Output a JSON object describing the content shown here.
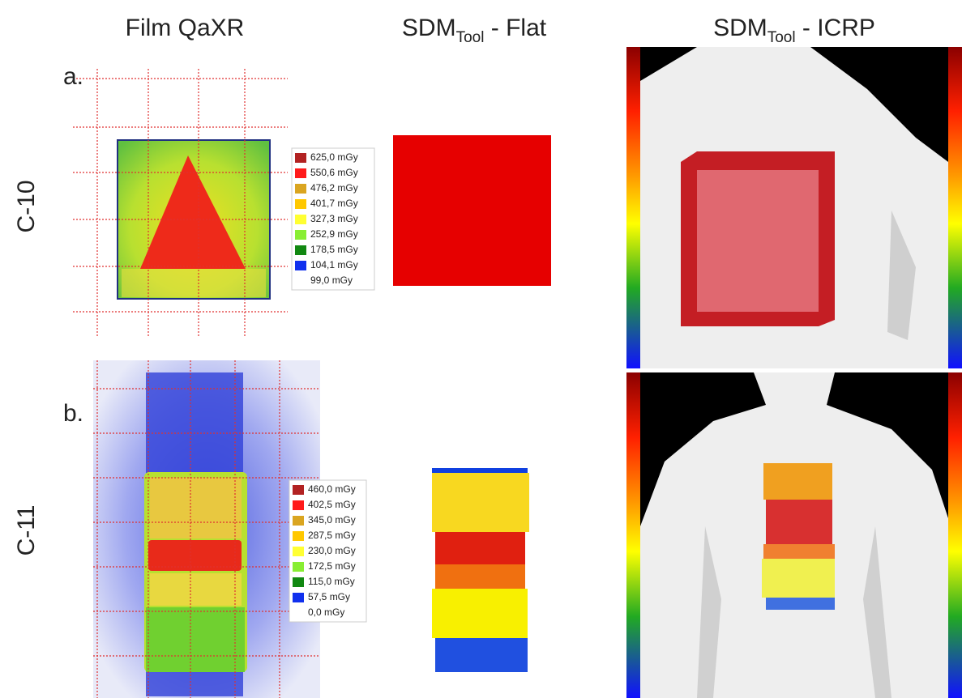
{
  "columns": [
    {
      "text": "Film QaXR"
    },
    {
      "main": "SDM",
      "sub": "Tool",
      "rest": " - Flat"
    },
    {
      "main": "SDM",
      "sub": "Tool",
      "rest": " - ICRP"
    }
  ],
  "rows": [
    {
      "label": "C-10",
      "letter": "a.",
      "legend": [
        {
          "text": "625,0 mGy",
          "color": "#b22222"
        },
        {
          "text": "550,6 mGy",
          "color": "#ff1a1a"
        },
        {
          "text": "476,2 mGy",
          "color": "#daa520"
        },
        {
          "text": "401,7 mGy",
          "color": "#ffc800"
        },
        {
          "text": "327,3 mGy",
          "color": "#ffff33"
        },
        {
          "text": "252,9 mGy",
          "color": "#88ee33"
        },
        {
          "text": "178,5 mGy",
          "color": "#118811"
        },
        {
          "text": "104,1 mGy",
          "color": "#1030ee"
        },
        {
          "text": "99,0 mGy",
          "color": "#ffffff"
        }
      ]
    },
    {
      "label": "C-11",
      "letter": "b.",
      "legend": [
        {
          "text": "460,0 mGy",
          "color": "#b22222"
        },
        {
          "text": "402,5 mGy",
          "color": "#ff1a1a"
        },
        {
          "text": "345,0 mGy",
          "color": "#daa520"
        },
        {
          "text": "287,5 mGy",
          "color": "#ffc800"
        },
        {
          "text": "230,0 mGy",
          "color": "#ffff33"
        },
        {
          "text": "172,5 mGy",
          "color": "#88ee33"
        },
        {
          "text": "115,0 mGy",
          "color": "#118811"
        },
        {
          "text": "57,5 mGy",
          "color": "#1030ee"
        },
        {
          "text": "0,0 mGy",
          "color": "#ffffff"
        }
      ]
    }
  ]
}
